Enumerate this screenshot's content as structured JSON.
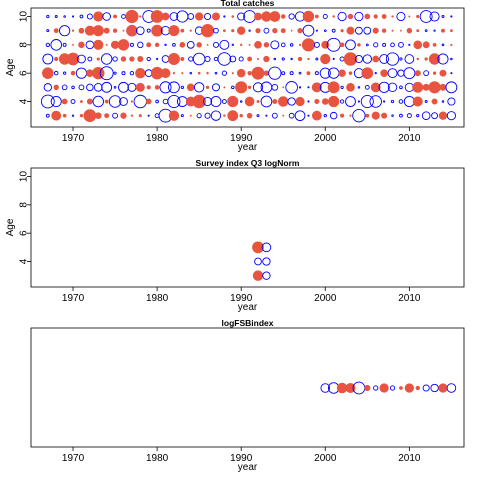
{
  "colors": {
    "positive": "#e8543f",
    "negative": "#0000ff",
    "frame": "#000000",
    "background": "#ffffff"
  },
  "chart_data": [
    {
      "type": "scatter",
      "subtype": "bubble-residuals",
      "title": "Total catches",
      "xlabel": "year",
      "ylabel": "Age",
      "xlim": [
        1965,
        2016.5
      ],
      "ylim": [
        2.2,
        10.6
      ],
      "xticks": [
        "1970",
        "1980",
        "1990",
        "2000",
        "2010"
      ],
      "yticks": [
        "4",
        "6",
        "8",
        "10"
      ],
      "years": [
        1967,
        2015
      ],
      "ages": [
        3,
        10
      ],
      "grid": false,
      "legend": "none"
    },
    {
      "type": "scatter",
      "subtype": "bubble-residuals",
      "title": "Survey index Q3 logNorm",
      "xlabel": "year",
      "ylabel": "Age",
      "xlim": [
        1965,
        2016.5
      ],
      "ylim": [
        2.2,
        10.6
      ],
      "xticks": [
        "1970",
        "1980",
        "1990",
        "2000",
        "2010"
      ],
      "yticks": [
        "4",
        "6",
        "8",
        "10"
      ],
      "grid": false,
      "legend": "none",
      "points": [
        {
          "x": 1992,
          "y": 5,
          "r": 0.9,
          "sign": "positive"
        },
        {
          "x": 1993,
          "y": 5,
          "r": 0.7,
          "sign": "negative"
        },
        {
          "x": 1992,
          "y": 4,
          "r": 0.55,
          "sign": "negative"
        },
        {
          "x": 1993,
          "y": 4,
          "r": 0.6,
          "sign": "negative"
        },
        {
          "x": 1992,
          "y": 3,
          "r": 0.8,
          "sign": "positive"
        },
        {
          "x": 1993,
          "y": 3,
          "r": 0.6,
          "sign": "negative"
        }
      ]
    },
    {
      "type": "scatter",
      "subtype": "bubble-residuals",
      "title": "logFSBindex",
      "xlabel": "year",
      "ylabel": "",
      "xlim": [
        1965,
        2016.5
      ],
      "xticks": [
        "1970",
        "1980",
        "1990",
        "2000",
        "2010"
      ],
      "yticks": [],
      "grid": false,
      "legend": "none",
      "points": [
        {
          "x": 2000,
          "r": 0.7,
          "sign": "negative"
        },
        {
          "x": 2001,
          "r": 0.85,
          "sign": "negative"
        },
        {
          "x": 2002,
          "r": 0.8,
          "sign": "positive"
        },
        {
          "x": 2003,
          "r": 0.75,
          "sign": "positive"
        },
        {
          "x": 2004,
          "r": 0.95,
          "sign": "negative"
        },
        {
          "x": 2005,
          "r": 0.45,
          "sign": "positive"
        },
        {
          "x": 2006,
          "r": 0.35,
          "sign": "negative"
        },
        {
          "x": 2007,
          "r": 0.7,
          "sign": "positive"
        },
        {
          "x": 2008,
          "r": 0.35,
          "sign": "negative"
        },
        {
          "x": 2009,
          "r": 0.25,
          "sign": "positive"
        },
        {
          "x": 2010,
          "r": 0.7,
          "sign": "positive"
        },
        {
          "x": 2011,
          "r": 0.3,
          "sign": "positive"
        },
        {
          "x": 2012,
          "r": 0.5,
          "sign": "negative"
        },
        {
          "x": 2013,
          "r": 0.6,
          "sign": "negative"
        },
        {
          "x": 2014,
          "r": 0.7,
          "sign": "positive"
        },
        {
          "x": 2015,
          "r": 0.7,
          "sign": "negative"
        }
      ]
    }
  ]
}
